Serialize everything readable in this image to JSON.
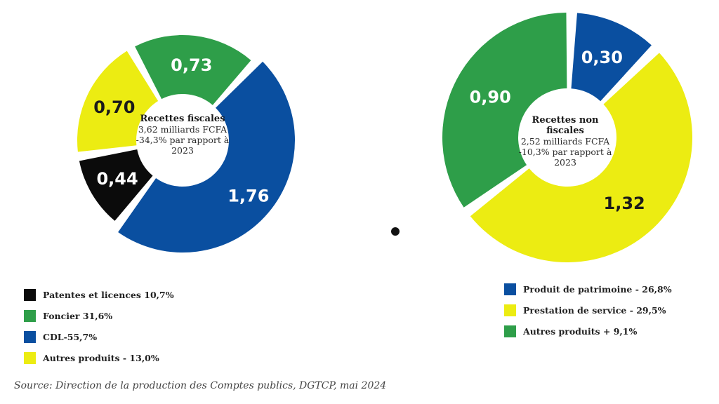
{
  "chart_data": [
    {
      "type": "pie",
      "variant": "donut",
      "center_title": "Recettes fiscales",
      "center_lines": [
        "3,62 milliards FCFA",
        "-34,3% par rapport à",
        "2023"
      ],
      "unit": "milliards FCFA",
      "slices": [
        {
          "label": "CDL",
          "value": 1.76,
          "display": "1,76",
          "color": "#0a4fa0",
          "text_color": "#ffffff"
        },
        {
          "label": "Patentes et licences",
          "value": 0.44,
          "display": "0,44",
          "color": "#0b0b0b",
          "text_color": "#ffffff"
        },
        {
          "label": "Autres produits",
          "value": 0.7,
          "display": "0,70",
          "color": "#ecec12",
          "text_color": "#1a1a1a"
        },
        {
          "label": "Foncier",
          "value": 0.73,
          "display": "0,73",
          "color": "#2e9e49",
          "text_color": "#ffffff"
        }
      ],
      "legend": [
        {
          "label": "Patentes et licences 10,7%",
          "color": "#0b0b0b"
        },
        {
          "label": "Foncier 31,6%",
          "color": "#2e9e49"
        },
        {
          "label": "CDL-55,7%",
          "color": "#0a4fa0"
        },
        {
          "label": "Autres produits - 13,0%",
          "color": "#ecec12"
        }
      ]
    },
    {
      "type": "pie",
      "variant": "donut",
      "center_title": "Recettes non fiscales",
      "center_lines": [
        "2,52 milliards FCFA",
        "-10,3% par rapport à",
        "2023"
      ],
      "unit": "milliards FCFA",
      "slices": [
        {
          "label": "Produit de patrimoine",
          "value": 0.3,
          "display": "0,30",
          "color": "#0a4fa0",
          "text_color": "#ffffff"
        },
        {
          "label": "Prestation de service",
          "value": 1.32,
          "display": "1,32",
          "color": "#ecec12",
          "text_color": "#1a1a1a"
        },
        {
          "label": "Autres produits",
          "value": 0.9,
          "display": "0,90",
          "color": "#2e9e49",
          "text_color": "#ffffff"
        }
      ],
      "legend": [
        {
          "label": "Produit de patrimoine - 26,8%",
          "color": "#0a4fa0"
        },
        {
          "label": "Prestation de service - 29,5%",
          "color": "#ecec12"
        },
        {
          "label": "Autres produits + 9,1%",
          "color": "#2e9e49"
        }
      ]
    }
  ],
  "source": "Source: Direction de la production des Comptes publics, DGTCP, mai 2024"
}
